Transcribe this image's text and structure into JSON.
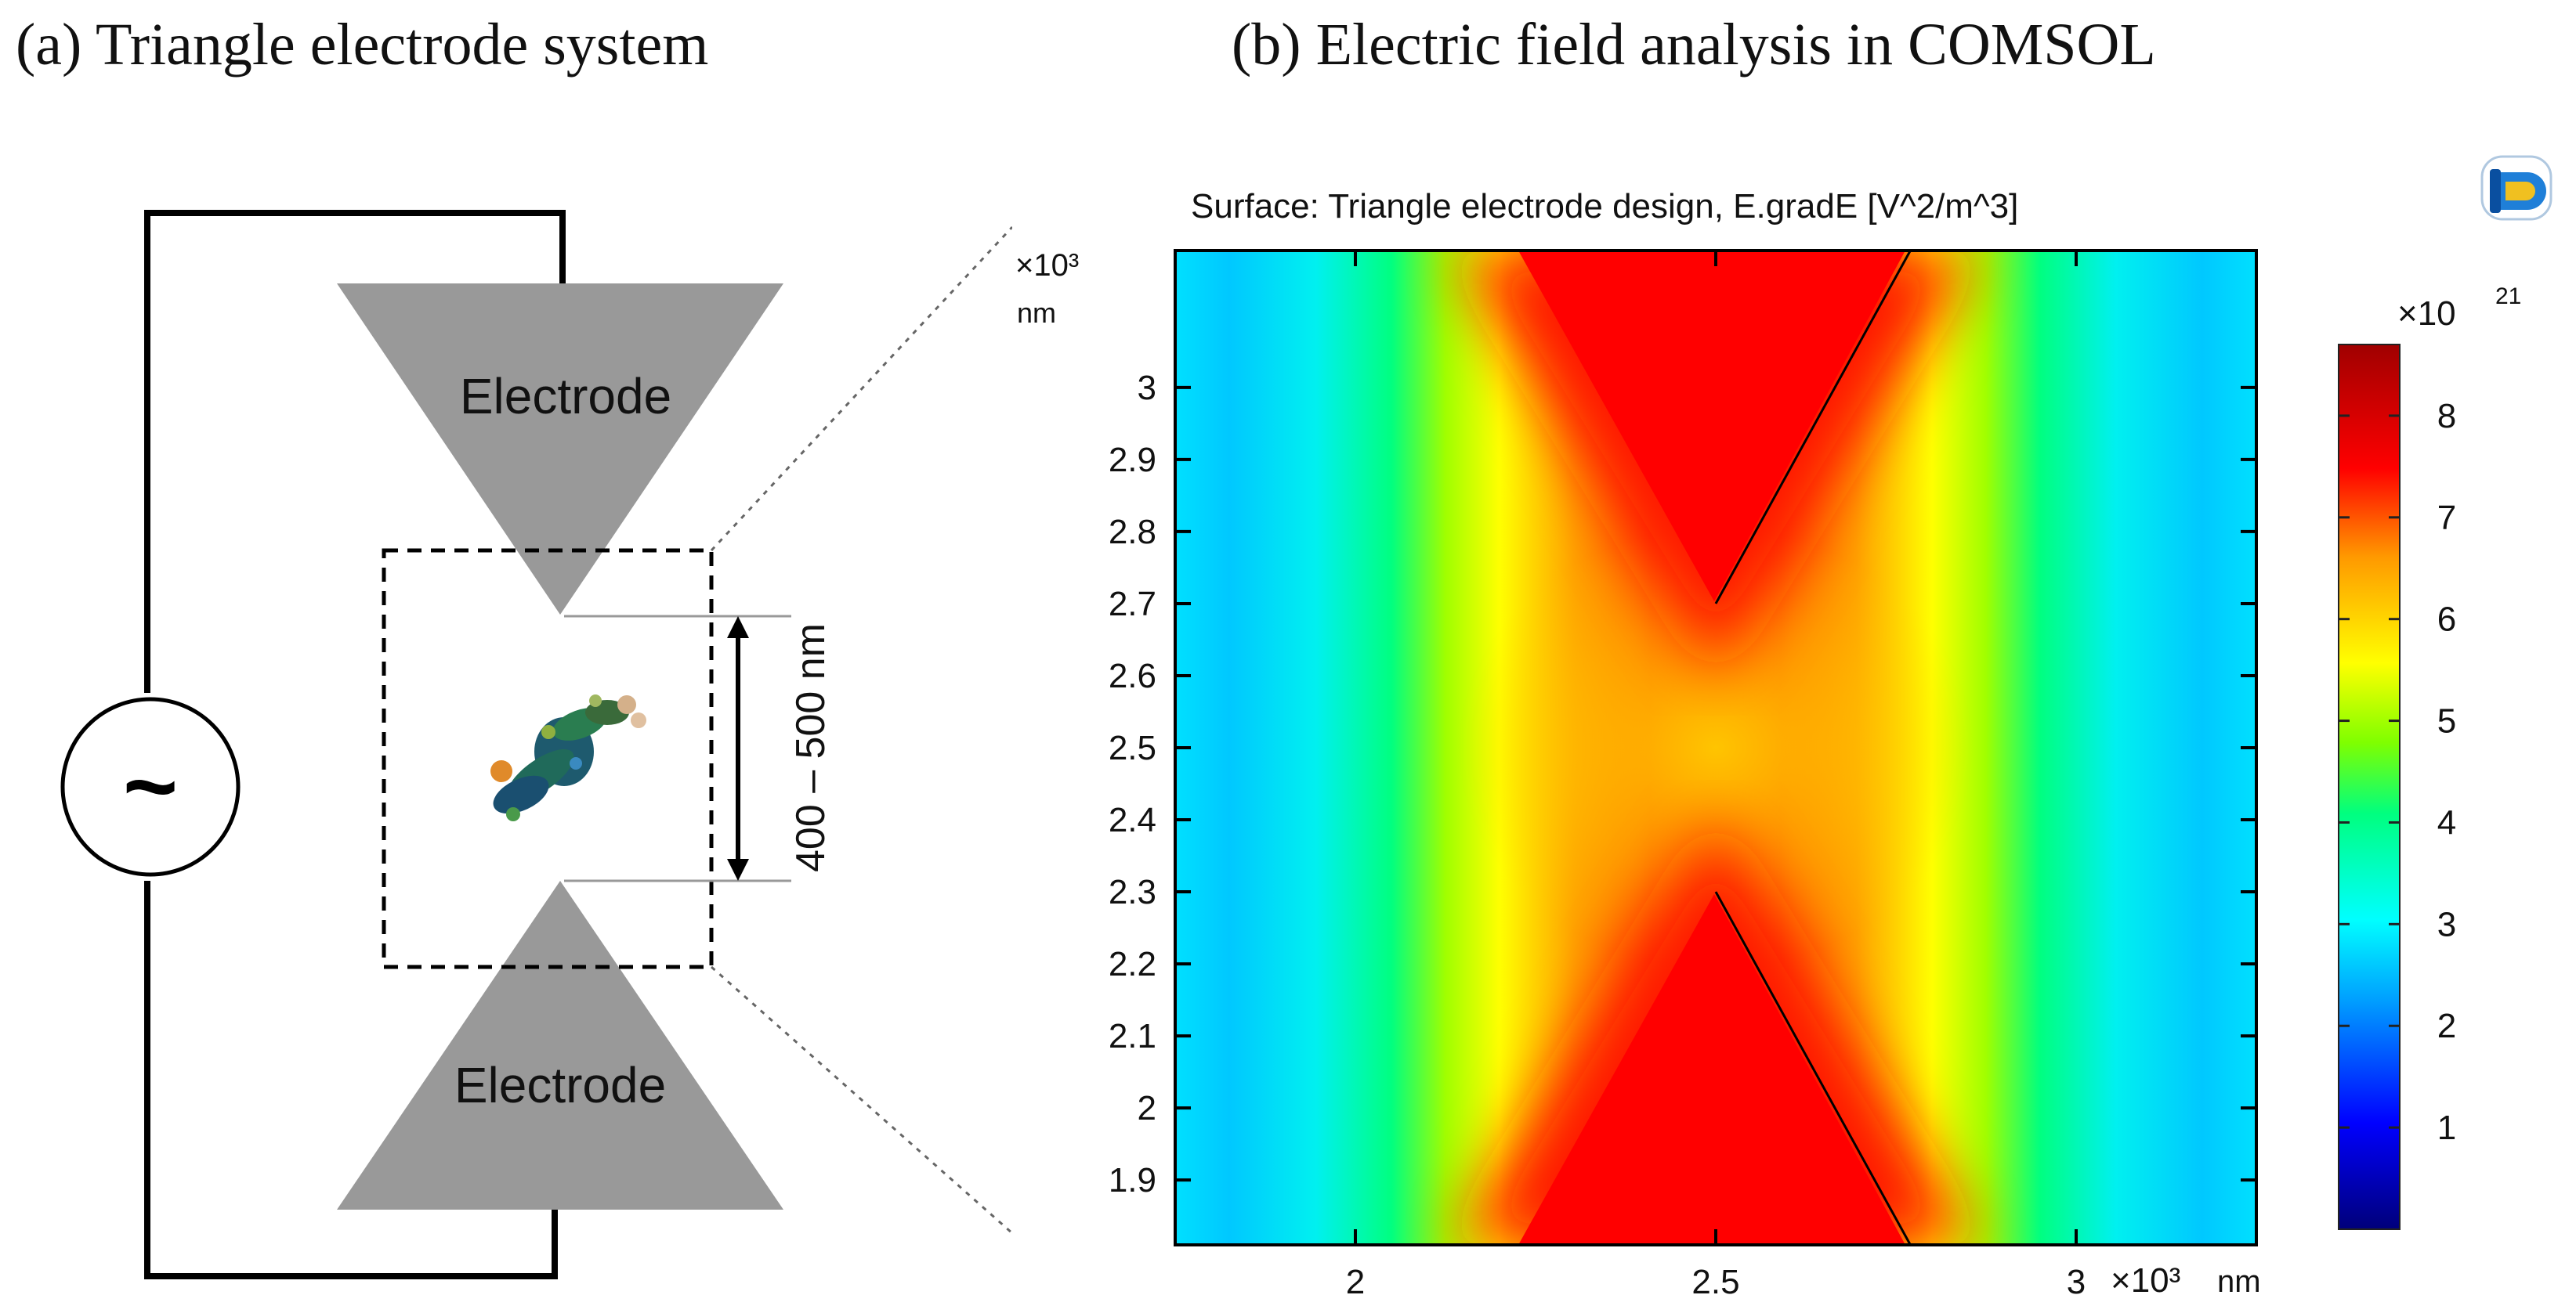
{
  "panel_a": {
    "title": "(a) Triangle electrode system",
    "top_electrode_label": "Electrode",
    "bottom_electrode_label": "Electrode",
    "ac_source_symbol": "~",
    "gap_label": "400 – 500 nm",
    "molecule_icon": "protein-molecule-icon"
  },
  "panel_b": {
    "title": "(b) Electric field analysis in COMSOL",
    "plot_title": "Surface: Triangle electrode design, E.gradE [V^2/m^3]",
    "logo_icon": "comsol-logo-icon"
  },
  "chart_data": {
    "type": "heatmap",
    "title": "Surface: Triangle electrode design, E.gradE [V^2/m^3]",
    "xlabel": "×10³ nm",
    "ylabel": "×10³ nm",
    "xlim": [
      1.75,
      3.25
    ],
    "ylim": [
      1.81,
      3.19
    ],
    "x_ticks": [
      2,
      2.5,
      3
    ],
    "x_tick_labels": [
      "2",
      "2.5",
      "3"
    ],
    "y_ticks": [
      1.9,
      2.0,
      2.1,
      2.2,
      2.3,
      2.4,
      2.5,
      2.6,
      2.7,
      2.8,
      2.9,
      3.0
    ],
    "y_tick_labels": [
      "1.9",
      "2",
      "2.1",
      "2.2",
      "2.3",
      "2.4",
      "2.5",
      "2.6",
      "2.7",
      "2.8",
      "2.9",
      "3"
    ],
    "x_axis_multiplier": "×10³",
    "x_axis_unit": "nm",
    "y_axis_multiplier": "×10³",
    "y_axis_unit": "nm",
    "colorbar": {
      "multiplier": "×10",
      "exponent": "21",
      "range": [
        0,
        8.7
      ],
      "ticks": [
        1,
        2,
        3,
        4,
        5,
        6,
        7,
        8
      ],
      "tick_labels": [
        "1",
        "2",
        "3",
        "4",
        "5",
        "6",
        "7",
        "8"
      ],
      "colormap": "rainbow",
      "colors": [
        "#00007a",
        "#0000ff",
        "#00a0ff",
        "#00ffff",
        "#00ff7f",
        "#7fff00",
        "#ffff00",
        "#ff9900",
        "#ff0000",
        "#a00000"
      ]
    },
    "electrode_outlines": [
      {
        "name": "top",
        "vertices": [
          [
            2.23,
            3.19
          ],
          [
            2.77,
            3.19
          ],
          [
            2.5,
            2.7
          ]
        ]
      },
      {
        "name": "bottom",
        "vertices": [
          [
            2.23,
            1.81
          ],
          [
            2.77,
            1.81
          ],
          [
            2.5,
            2.3
          ]
        ]
      }
    ]
  }
}
